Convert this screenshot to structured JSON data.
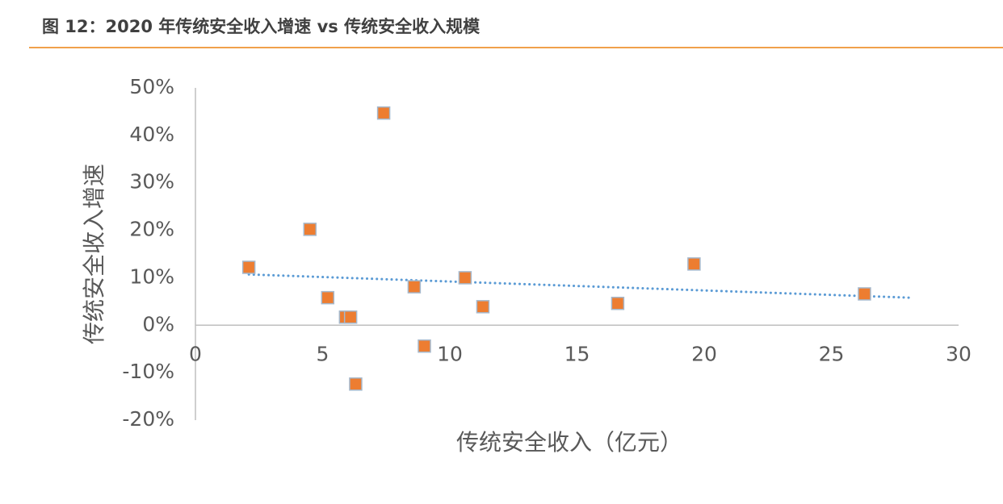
{
  "chart_data": {
    "type": "scatter",
    "title": "图 12：2020 年传统安全收入增速 vs 传统安全收入规模",
    "xlabel": "传统安全收入（亿元）",
    "ylabel": "传统安全收入增速",
    "x": [
      2.1,
      4.5,
      5.2,
      5.9,
      6.1,
      6.3,
      7.4,
      8.6,
      9.0,
      10.6,
      11.3,
      16.6,
      19.6,
      26.3
    ],
    "values": [
      12.2,
      20.2,
      5.8,
      1.7,
      1.7,
      -12.4,
      44.7,
      8.1,
      -4.4,
      10.0,
      3.9,
      4.6,
      12.9,
      6.6
    ],
    "color": "#ed7d31",
    "trendline": {
      "x": [
        2.1,
        28.1
      ],
      "values": [
        10.7,
        5.8
      ],
      "color": "#5b9bd5"
    },
    "xlim": [
      0,
      30
    ],
    "xticks": [
      0,
      5,
      10,
      15,
      20,
      25,
      30
    ],
    "ylim": [
      -20,
      50
    ],
    "yticks": [
      {
        "value": 50,
        "label": "50%"
      },
      {
        "value": 40,
        "label": "40%"
      },
      {
        "value": 30,
        "label": "30%"
      },
      {
        "value": 20,
        "label": "20%"
      },
      {
        "value": 10,
        "label": "10%"
      },
      {
        "value": 0,
        "label": "0%"
      },
      {
        "value": -10,
        "label": "-10%"
      },
      {
        "value": -20,
        "label": "-20%"
      }
    ],
    "grid": false
  }
}
